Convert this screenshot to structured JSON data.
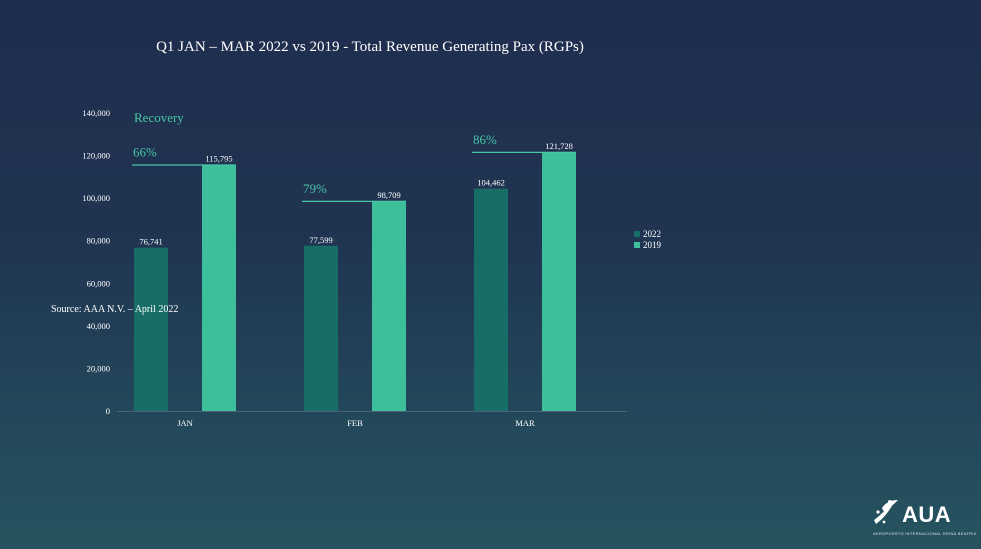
{
  "slide": {
    "source": "Source: AAA N.V. – April 2022",
    "logo": {
      "name": "AUA",
      "tagline": "AEROPUERTO INTERNACIONAL REINA BEATRIX"
    }
  },
  "colors": {
    "s2022": "#166e66",
    "s2019": "#3dbf9c",
    "recovery": "#48c6a4",
    "axis": "#4b6276"
  },
  "chart_data": {
    "type": "bar",
    "title": "Q1 JAN – MAR 2022 vs 2019 - Total Revenue Generating Pax (RGPs)",
    "categories": [
      "JAN",
      "FEB",
      "MAR"
    ],
    "series": [
      {
        "name": "2022",
        "values": [
          76741,
          77599,
          104462
        ],
        "labels": [
          "76,741",
          "77,599",
          "104,462"
        ]
      },
      {
        "name": "2019",
        "values": [
          115795,
          98709,
          121728
        ],
        "labels": [
          "115,795",
          "98,709",
          "121,728"
        ]
      }
    ],
    "ylim": [
      0,
      140000
    ],
    "yticks": [
      0,
      20000,
      40000,
      60000,
      80000,
      100000,
      120000,
      140000
    ],
    "ytick_labels": [
      "0",
      "20,000",
      "40,000",
      "60,000",
      "80,000",
      "100,000",
      "120,000",
      "140,000"
    ],
    "annotations": {
      "recovery_title": "Recovery",
      "recovery_labels": [
        "66%",
        "79%",
        "86%"
      ]
    },
    "legend": "right",
    "grid": false
  }
}
